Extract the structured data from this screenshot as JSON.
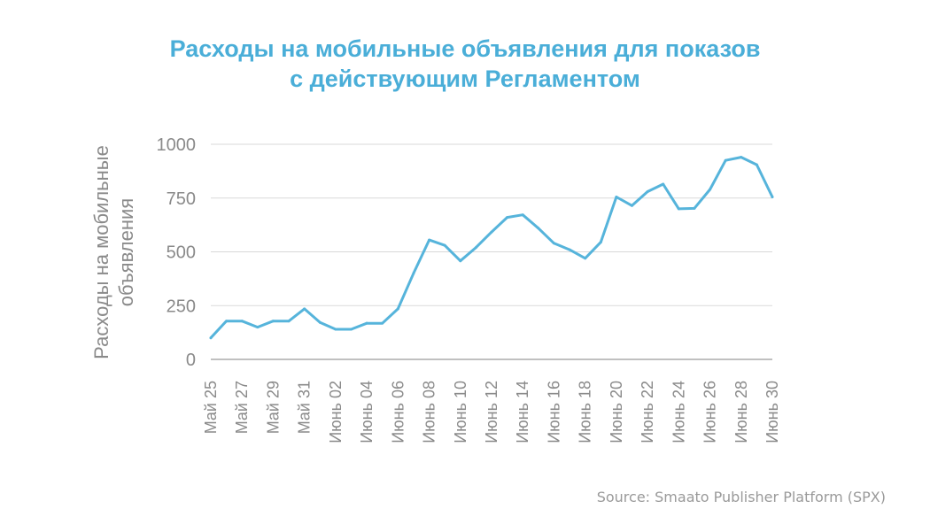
{
  "title_line1": "Расходы на мобильные объявления для показов",
  "title_line2": "с действующим Регламентом",
  "source": "Source: Smaato Publisher Platform (SPX)",
  "colors": {
    "title": "#4aaed8",
    "line": "#56b4db",
    "axis_text": "#8a8a8a",
    "grid": "#d9d9d9",
    "source": "#9a9a9a"
  },
  "chart_data": {
    "type": "line",
    "ylabel_line1": "Расходы на мобильные",
    "ylabel_line2": "объявления",
    "ylim": [
      0,
      1000
    ],
    "yticks": [
      0,
      250,
      500,
      750,
      1000
    ],
    "grid": true,
    "x_tick_labels": [
      "Май 25",
      "Май 27",
      "Май 29",
      "Май 31",
      "Июнь 02",
      "Июнь 04",
      "Июнь 06",
      "Июнь 08",
      "Июнь 10",
      "Июнь 12",
      "Июнь 14",
      "Июнь 16",
      "Июнь 18",
      "Июнь 20",
      "Июнь 22",
      "Июнь 24",
      "Июнь 26",
      "Июнь 28",
      "Июнь 30"
    ],
    "x": [
      "Май 25",
      "Май 26",
      "Май 27",
      "Май 28",
      "Май 29",
      "Май 30",
      "Май 31",
      "Июнь 01",
      "Июнь 02",
      "Июнь 03",
      "Июнь 04",
      "Июнь 05",
      "Июнь 06",
      "Июнь 07",
      "Июнь 08",
      "Июнь 09",
      "Июнь 10",
      "Июнь 11",
      "Июнь 12",
      "Июнь 13",
      "Июнь 14",
      "Июнь 15",
      "Июнь 16",
      "Июнь 17",
      "Июнь 18",
      "Июнь 19",
      "Июнь 20",
      "Июнь 21",
      "Июнь 22",
      "Июнь 23",
      "Июнь 24",
      "Июнь 25",
      "Июнь 26",
      "Июнь 27",
      "Июнь 28",
      "Июнь 29",
      "Июнь 30"
    ],
    "values": [
      100,
      178,
      178,
      150,
      178,
      178,
      235,
      172,
      140,
      140,
      168,
      168,
      235,
      400,
      555,
      530,
      458,
      520,
      592,
      660,
      672,
      610,
      540,
      510,
      470,
      545,
      755,
      715,
      780,
      815,
      700,
      702,
      790,
      925,
      940,
      905,
      755
    ]
  }
}
